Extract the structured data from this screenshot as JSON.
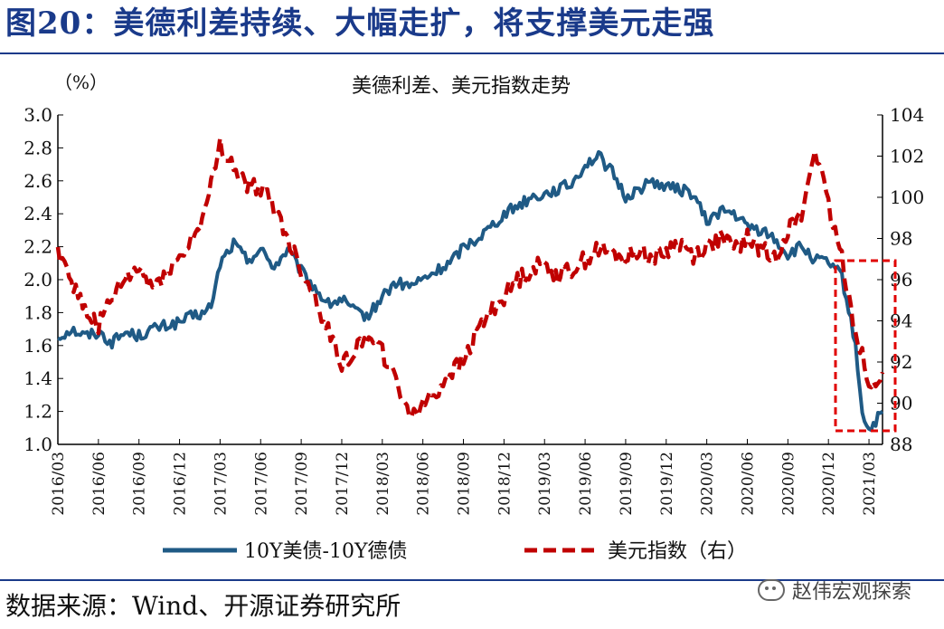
{
  "figure": {
    "title": "图20：美德利差持续、大幅走扩，将支撑美元走强",
    "source": "数据来源：Wind、开源证券研究所",
    "watermark": "赵伟宏观探索"
  },
  "colors": {
    "spread": "#1f5a85",
    "dxy": "#c00000",
    "highlight": "#e00000",
    "title": "#1a3a8a"
  },
  "chart_data": {
    "type": "line",
    "title": "美德利差、美元指数走势",
    "left_unit": "（%）",
    "left_ylim": [
      1.0,
      3.0
    ],
    "right_ylim": [
      88,
      104
    ],
    "left_ticks": [
      "3.0",
      "2.8",
      "2.6",
      "2.4",
      "2.2",
      "2.0",
      "1.8",
      "1.6",
      "1.4",
      "1.2",
      "1.0"
    ],
    "right_ticks": [
      "104",
      "102",
      "100",
      "98",
      "96",
      "94",
      "92",
      "90",
      "88"
    ],
    "x_ticks": [
      "2016/03",
      "2016/06",
      "2016/09",
      "2016/12",
      "2017/03",
      "2017/06",
      "2017/09",
      "2017/12",
      "2018/03",
      "2018/06",
      "2018/09",
      "2018/12",
      "2019/03",
      "2019/06",
      "2019/09",
      "2019/12",
      "2020/03",
      "2020/06",
      "2020/09",
      "2020/12",
      "2021/03"
    ],
    "x_range_months": [
      0,
      61
    ],
    "series": [
      {
        "name": "10Y美债-10Y德债",
        "axis": "left",
        "style": "solid",
        "points": [
          [
            0,
            1.65
          ],
          [
            1,
            1.7
          ],
          [
            2,
            1.66
          ],
          [
            3,
            1.68
          ],
          [
            4,
            1.62
          ],
          [
            5,
            1.68
          ],
          [
            6,
            1.66
          ],
          [
            7,
            1.7
          ],
          [
            8,
            1.72
          ],
          [
            9,
            1.74
          ],
          [
            10,
            1.78
          ],
          [
            11,
            1.8
          ],
          [
            11.5,
            1.88
          ],
          [
            12,
            2.1
          ],
          [
            13,
            2.22
          ],
          [
            14,
            2.12
          ],
          [
            15,
            2.18
          ],
          [
            16,
            2.08
          ],
          [
            17,
            2.18
          ],
          [
            18,
            2.05
          ],
          [
            19,
            1.95
          ],
          [
            20,
            1.85
          ],
          [
            21,
            1.88
          ],
          [
            22,
            1.8
          ],
          [
            23,
            1.78
          ],
          [
            24,
            1.9
          ],
          [
            25,
            1.98
          ],
          [
            26,
            1.96
          ],
          [
            27,
            2.0
          ],
          [
            28,
            2.05
          ],
          [
            29,
            2.1
          ],
          [
            30,
            2.2
          ],
          [
            31,
            2.25
          ],
          [
            32,
            2.32
          ],
          [
            33,
            2.4
          ],
          [
            34,
            2.45
          ],
          [
            35,
            2.5
          ],
          [
            36,
            2.52
          ],
          [
            37,
            2.55
          ],
          [
            38,
            2.58
          ],
          [
            39,
            2.7
          ],
          [
            40,
            2.75
          ],
          [
            41,
            2.65
          ],
          [
            42,
            2.5
          ],
          [
            43,
            2.55
          ],
          [
            44,
            2.6
          ],
          [
            45,
            2.56
          ],
          [
            46,
            2.55
          ],
          [
            47,
            2.52
          ],
          [
            48,
            2.35
          ],
          [
            49,
            2.42
          ],
          [
            50,
            2.4
          ],
          [
            51,
            2.32
          ],
          [
            52,
            2.3
          ],
          [
            53,
            2.25
          ],
          [
            54,
            2.15
          ],
          [
            55,
            2.2
          ],
          [
            56,
            2.12
          ],
          [
            57,
            2.1
          ],
          [
            58,
            2.02
          ],
          [
            59,
            1.6
          ],
          [
            59.5,
            1.2
          ],
          [
            60,
            1.08
          ],
          [
            61,
            1.2
          ]
        ]
      },
      {
        "name": "美元指数（右）",
        "axis": "right",
        "style": "dashed",
        "points": [
          [
            0,
            97.5
          ],
          [
            1,
            96.0
          ],
          [
            2,
            94.5
          ],
          [
            3,
            93.8
          ],
          [
            4,
            95.0
          ],
          [
            5,
            96.0
          ],
          [
            6,
            96.5
          ],
          [
            7,
            95.6
          ],
          [
            8,
            96.4
          ],
          [
            9,
            97.0
          ],
          [
            10,
            98.0
          ],
          [
            11,
            99.5
          ],
          [
            11.5,
            101.0
          ],
          [
            12,
            102.5
          ],
          [
            13,
            101.5
          ],
          [
            14,
            100.5
          ],
          [
            15,
            100.5
          ],
          [
            16,
            99.5
          ],
          [
            17,
            98.0
          ],
          [
            18,
            96.5
          ],
          [
            19,
            95.2
          ],
          [
            20,
            93.5
          ],
          [
            21,
            92.0
          ],
          [
            22,
            92.5
          ],
          [
            23,
            93.5
          ],
          [
            24,
            92.5
          ],
          [
            25,
            91.0
          ],
          [
            26,
            89.5
          ],
          [
            27,
            90.0
          ],
          [
            28,
            90.5
          ],
          [
            29,
            91.5
          ],
          [
            30,
            92.0
          ],
          [
            31,
            93.5
          ],
          [
            32,
            94.5
          ],
          [
            33,
            95.2
          ],
          [
            34,
            96.0
          ],
          [
            35,
            96.5
          ],
          [
            36,
            96.8
          ],
          [
            37,
            96.2
          ],
          [
            38,
            96.5
          ],
          [
            39,
            97.0
          ],
          [
            40,
            97.5
          ],
          [
            41,
            97.2
          ],
          [
            42,
            97.0
          ],
          [
            43,
            97.5
          ],
          [
            44,
            97.0
          ],
          [
            45,
            97.4
          ],
          [
            46,
            97.8
          ],
          [
            47,
            97.2
          ],
          [
            48,
            97.6
          ],
          [
            49,
            98.0
          ],
          [
            50,
            97.5
          ],
          [
            51,
            98.0
          ],
          [
            52,
            97.5
          ],
          [
            53,
            97.0
          ],
          [
            54,
            98.5
          ],
          [
            55,
            99.0
          ],
          [
            56,
            102.5
          ],
          [
            57,
            99.5
          ],
          [
            58,
            97.0
          ],
          [
            59,
            93.5
          ],
          [
            59.5,
            92.5
          ],
          [
            60,
            90.5
          ],
          [
            61,
            91.5
          ]
        ]
      }
    ],
    "annotation": "highlight box around 2020/12–2021/03"
  }
}
